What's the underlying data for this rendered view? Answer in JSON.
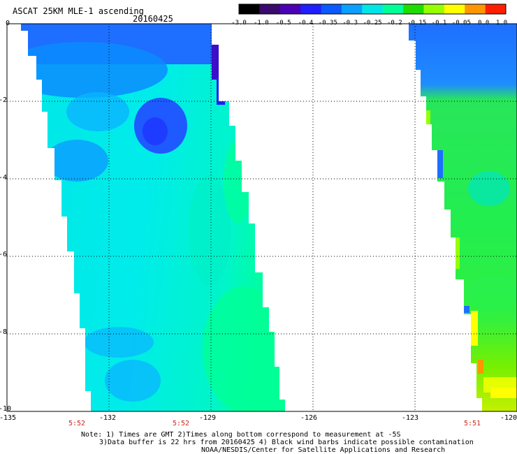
{
  "header": {
    "title": "ASCAT 25KM MLE-1 ascending",
    "date": "20160425"
  },
  "colorbar": {
    "labels": [
      "-3.0",
      "-1.0",
      "-0.5",
      "-0.4",
      "-0.35",
      "-0.3",
      "-0.25",
      "-0.2",
      "-0.15",
      "-0.1",
      "-0.05",
      "0.0",
      "1.0"
    ],
    "colors": [
      "#000000",
      "#3a0a6e",
      "#4b00b4",
      "#1e1eff",
      "#0a5aff",
      "#0aa0ff",
      "#00e6e6",
      "#00ff96",
      "#1edc00",
      "#96ff00",
      "#ffff00",
      "#ff9600",
      "#ff1e00"
    ]
  },
  "map": {
    "lat_ticks": [
      "0",
      "-2",
      "-4",
      "-6",
      "-8",
      "-10"
    ],
    "lon_ticks": [
      "-135",
      "-132",
      "-129",
      "-126",
      "-123",
      "-120"
    ],
    "time_labels": [
      "5:52",
      "5:52",
      "5:51"
    ],
    "lat_range": [
      -10,
      0
    ],
    "lon_range": [
      -135,
      -120
    ],
    "swaths": [
      {
        "name": "left swath",
        "dominant": "cyan",
        "north_edge": "blue",
        "east_edge": "green"
      },
      {
        "name": "right swath",
        "dominant": "green",
        "north_edge": "blue",
        "south_edge": "yellow-orange"
      }
    ]
  },
  "notes": {
    "line1": "Note: 1) Times are GMT 2)Times along bottom correspond to measurement at -5S",
    "line2": "3)Data buffer is 22 hrs from 20160425 4) Black wind barbs indicate possible contamination",
    "line3": "NOAA/NESDIS/Center for Satellite Applications and Research"
  }
}
